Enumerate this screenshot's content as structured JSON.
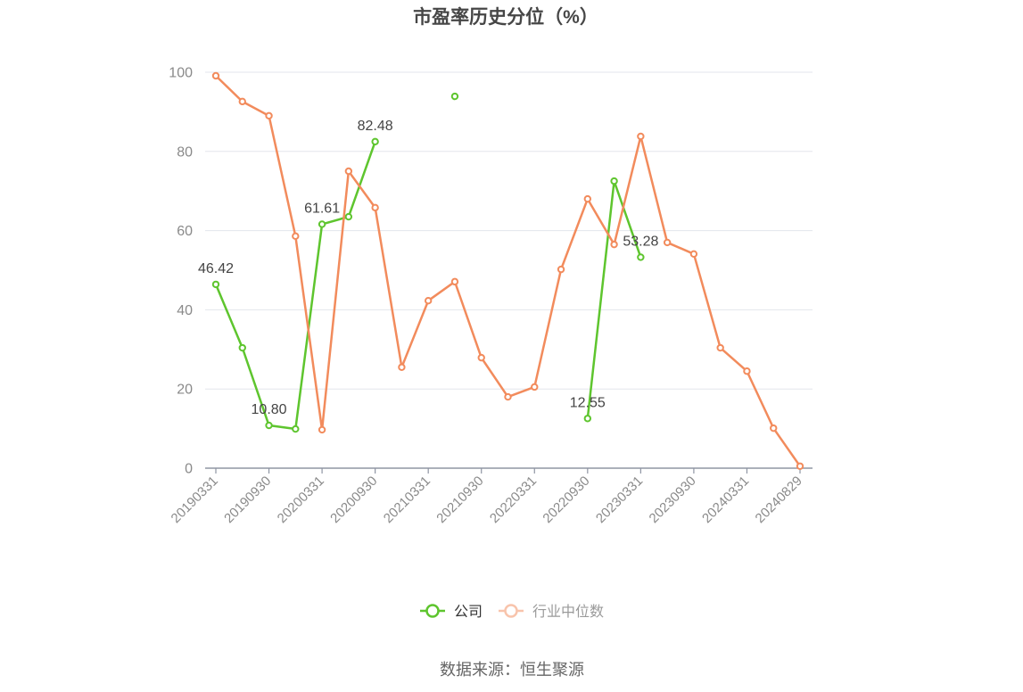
{
  "source": "数据来源：恒生聚源",
  "chart_data": {
    "type": "line",
    "title": "市盈率历史分位（%）",
    "categories": [
      "20190331",
      "",
      "20190930",
      "",
      "20200331",
      "",
      "20200930",
      "",
      "20210331",
      "",
      "20210930",
      "",
      "20220331",
      "",
      "20220930",
      "",
      "20230331",
      "",
      "20230930",
      "",
      "20240331",
      "",
      "20240829"
    ],
    "ylim": [
      0,
      100
    ],
    "y_ticks": [
      0,
      20,
      40,
      60,
      80,
      100
    ],
    "grid": true,
    "legend_position": "bottom",
    "series": [
      {
        "name": "公司",
        "color": "#5ec52e",
        "values": [
          46.42,
          30.4,
          10.8,
          9.9,
          61.61,
          63.5,
          82.48,
          null,
          null,
          93.9,
          null,
          null,
          null,
          null,
          12.55,
          72.5,
          53.28,
          null,
          null,
          null,
          null,
          null,
          null
        ],
        "labels": [
          "46.42",
          null,
          "10.80",
          null,
          "61.61",
          null,
          "82.48",
          null,
          null,
          null,
          null,
          null,
          null,
          null,
          "12.55",
          null,
          "53.28",
          null,
          null,
          null,
          null,
          null,
          null
        ]
      },
      {
        "name": "行业中位数",
        "color": "#f28b5c",
        "values": [
          99.1,
          92.6,
          89.0,
          58.6,
          9.7,
          75.0,
          65.8,
          25.5,
          42.3,
          47.1,
          27.9,
          18.0,
          20.5,
          50.2,
          68.0,
          56.5,
          83.8,
          57.0,
          54.1,
          30.4,
          24.5,
          10.1,
          0.5
        ]
      }
    ]
  }
}
